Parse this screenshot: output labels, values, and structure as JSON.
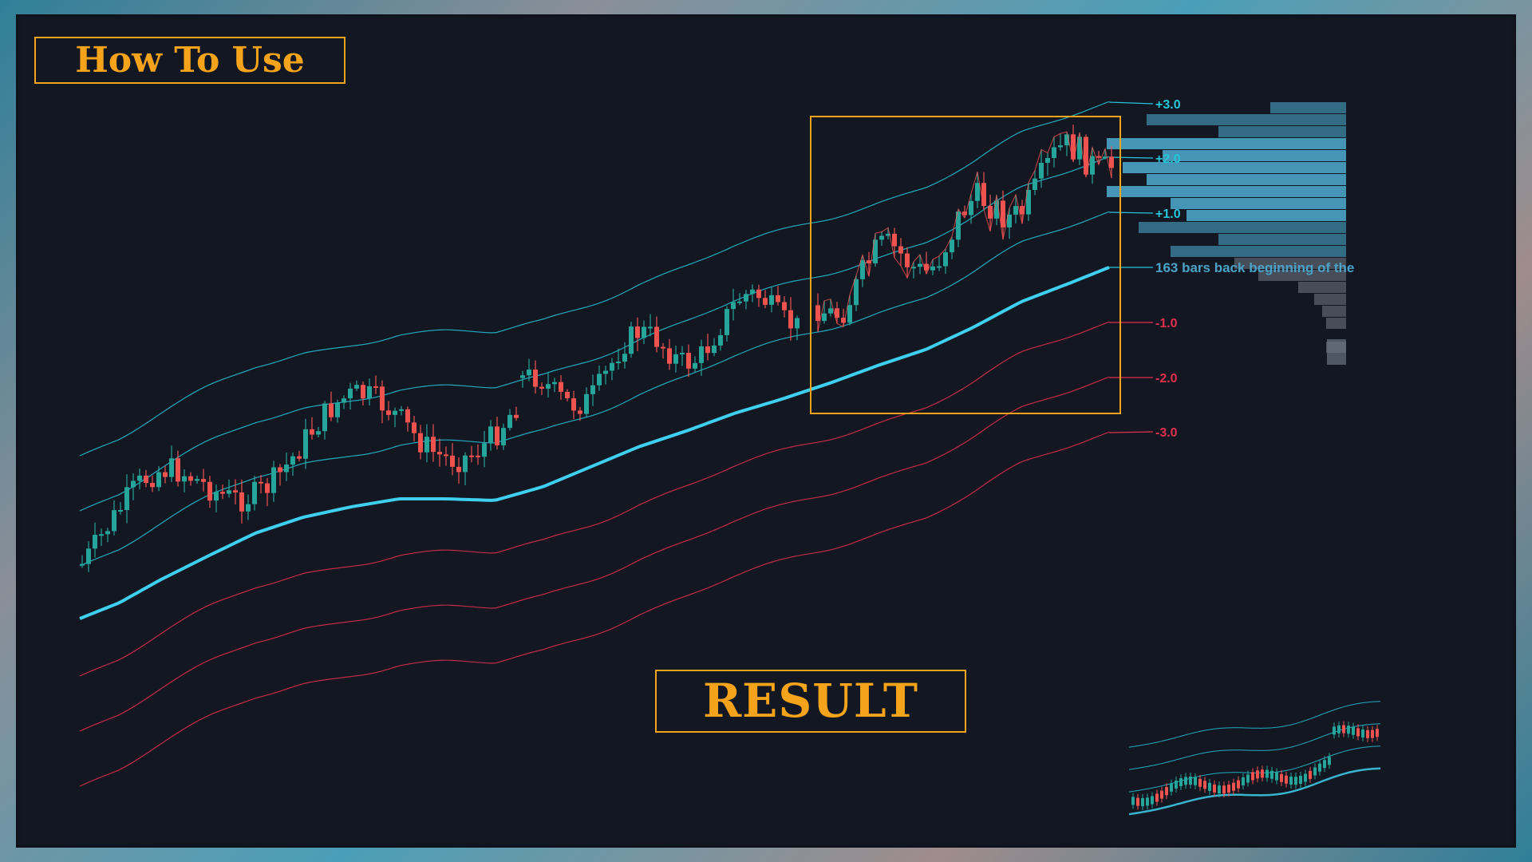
{
  "header": {
    "how_to_use": "How To Use"
  },
  "footer": {
    "result": "RESULT"
  },
  "colors": {
    "background": "#131722",
    "accent": "#f5a31a",
    "upper_band": "#26c6da",
    "lower_band": "#e0304e",
    "basis": "#3fd0f0",
    "candle_up": "#26a69a",
    "candle_down": "#ef5350",
    "profile": "#4aa3c7"
  },
  "chart_data": {
    "type": "line",
    "title": "",
    "xlabel": "",
    "ylabel": "",
    "grid": false,
    "legend": "none",
    "levels": [
      {
        "name": "+3.0",
        "color": "#26c6da"
      },
      {
        "name": "+2.0",
        "color": "#26c6da"
      },
      {
        "name": "+1.0",
        "color": "#26c6da"
      },
      {
        "name": "-1.0",
        "color": "#e0304e"
      },
      {
        "name": "-2.0",
        "color": "#e0304e"
      },
      {
        "name": "-3.0",
        "color": "#e0304e"
      }
    ],
    "annotation": "163 bars back beginning of the"
  }
}
